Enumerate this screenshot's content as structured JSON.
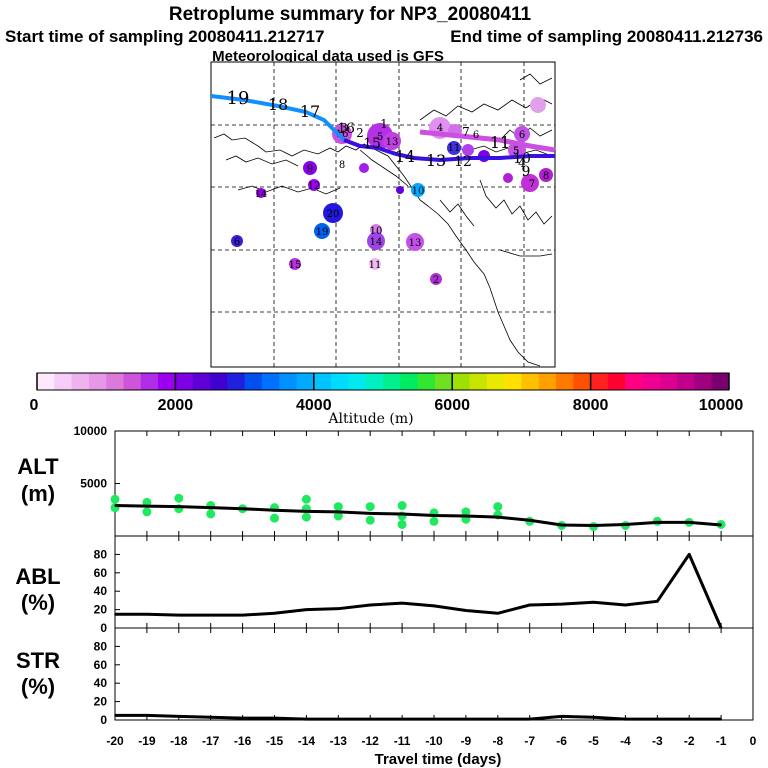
{
  "header": {
    "title": "Retroplume summary for NP3_20080411",
    "start_label": "Start time of sampling 20080411.212717",
    "end_label": "End time of sampling 20080411.212736",
    "met_label": "Meteorological data used is GFS"
  },
  "colorbar": {
    "ticks": [
      "0",
      "2000",
      "4000",
      "6000",
      "8000",
      "10000"
    ],
    "label": "Altitude (m)",
    "colors": [
      "#fde8fd",
      "#f6cdf6",
      "#eeb2ee",
      "#e697e6",
      "#dc7adc",
      "#cc55dc",
      "#b02ce6",
      "#9d00f0",
      "#7f00e6",
      "#6000d8",
      "#4000d0",
      "#2020e0",
      "#0050f0",
      "#0070ff",
      "#0090ff",
      "#00aaff",
      "#00c4ff",
      "#00dcff",
      "#00eaf0",
      "#00f0c0",
      "#00f090",
      "#00ec60",
      "#30e830",
      "#70e020",
      "#a0e000",
      "#c8e400",
      "#e8e800",
      "#ffe000",
      "#ffc000",
      "#ffa000",
      "#ff7800",
      "#ff5000",
      "#ff2020",
      "#ff0030",
      "#ff0080",
      "#f00090",
      "#dc0090",
      "#c0008c",
      "#a00080",
      "#7a0070"
    ]
  },
  "map": {
    "trajectory_labels": [
      "19",
      "18",
      "17",
      "16",
      "15",
      "14",
      "13",
      "12",
      "11",
      "10",
      "9",
      "8",
      "7",
      "6",
      "5",
      "4",
      "3",
      "2",
      "1"
    ],
    "cluster_labels": [
      "9",
      "12",
      "10",
      "20",
      "19",
      "6",
      "10",
      "14",
      "15",
      "11",
      "13",
      "2",
      "14",
      "5",
      "16",
      "5",
      "13",
      "4",
      "11",
      "6",
      "7",
      "8"
    ]
  },
  "chart_data": [
    {
      "type": "line",
      "panel": "ALT",
      "ylabel_line1": "ALT",
      "ylabel_line2": "(m)",
      "ylim": [
        0,
        10000
      ],
      "y_ticks": [
        "10000",
        "5000"
      ],
      "x": [
        -20,
        -19,
        -18,
        -17,
        -16,
        -15,
        -14,
        -13,
        -12,
        -11,
        -10,
        -9,
        -8,
        -7,
        -6,
        -5,
        -4,
        -3,
        -2,
        -1
      ],
      "values": [
        2900,
        2850,
        2800,
        2700,
        2600,
        2450,
        2350,
        2300,
        2150,
        2100,
        1950,
        1900,
        1800,
        1500,
        1050,
        1000,
        1100,
        1300,
        1300,
        1050
      ],
      "scatter_series": {
        "name": "cluster altitudes",
        "color": "#20e860",
        "points": [
          [
            -20,
            3500
          ],
          [
            -20,
            2700
          ],
          [
            -19,
            3200
          ],
          [
            -19,
            2300
          ],
          [
            -18,
            3600
          ],
          [
            -18,
            2600
          ],
          [
            -17,
            2900
          ],
          [
            -17,
            2100
          ],
          [
            -16,
            2600
          ],
          [
            -15,
            2700
          ],
          [
            -15,
            1700
          ],
          [
            -14,
            3500
          ],
          [
            -14,
            2600
          ],
          [
            -14,
            1800
          ],
          [
            -13,
            2800
          ],
          [
            -13,
            1900
          ],
          [
            -12,
            2800
          ],
          [
            -12,
            1500
          ],
          [
            -11,
            2900
          ],
          [
            -11,
            1900
          ],
          [
            -11,
            1100
          ],
          [
            -10,
            2200
          ],
          [
            -10,
            1400
          ],
          [
            -9,
            2300
          ],
          [
            -9,
            1600
          ],
          [
            -8,
            2800
          ],
          [
            -8,
            2000
          ],
          [
            -7,
            1400
          ],
          [
            -6,
            1000
          ],
          [
            -5,
            900
          ],
          [
            -4,
            1000
          ],
          [
            -3,
            1400
          ],
          [
            -2,
            1300
          ],
          [
            -1,
            1100
          ]
        ]
      }
    },
    {
      "type": "line",
      "panel": "ABL",
      "ylabel_line1": "ABL",
      "ylabel_line2": "(%)",
      "ylim": [
        0,
        100
      ],
      "y_ticks": [
        "80",
        "60",
        "40",
        "20",
        "0"
      ],
      "x": [
        -20,
        -19,
        -18,
        -17,
        -16,
        -15,
        -14,
        -13,
        -12,
        -11,
        -10,
        -9,
        -8,
        -7,
        -6,
        -5,
        -4,
        -3,
        -2,
        -1
      ],
      "values": [
        15,
        15,
        14,
        14,
        14,
        16,
        20,
        21,
        25,
        27,
        24,
        19,
        16,
        25,
        26,
        28,
        25,
        29,
        80,
        0
      ]
    },
    {
      "type": "line",
      "panel": "STR",
      "ylabel_line1": "STR",
      "ylabel_line2": "(%)",
      "ylim": [
        0,
        100
      ],
      "y_ticks": [
        "80",
        "60",
        "40",
        "20",
        "0"
      ],
      "x": [
        -20,
        -19,
        -18,
        -17,
        -16,
        -15,
        -14,
        -13,
        -12,
        -11,
        -10,
        -9,
        -8,
        -7,
        -6,
        -5,
        -4,
        -3,
        -2,
        -1
      ],
      "values": [
        5,
        5,
        4,
        3,
        2,
        2,
        1,
        1,
        1,
        1,
        1,
        1,
        1,
        1,
        4,
        3,
        1,
        1,
        1,
        1
      ]
    }
  ],
  "x_axis": {
    "ticks": [
      "-20",
      "-19",
      "-18",
      "-17",
      "-16",
      "-15",
      "-14",
      "-13",
      "-12",
      "-11",
      "-10",
      "-9",
      "-8",
      "-7",
      "-6",
      "-5",
      "-4",
      "-3",
      "-2",
      "-1",
      "0"
    ],
    "label": "Travel time (days)"
  }
}
